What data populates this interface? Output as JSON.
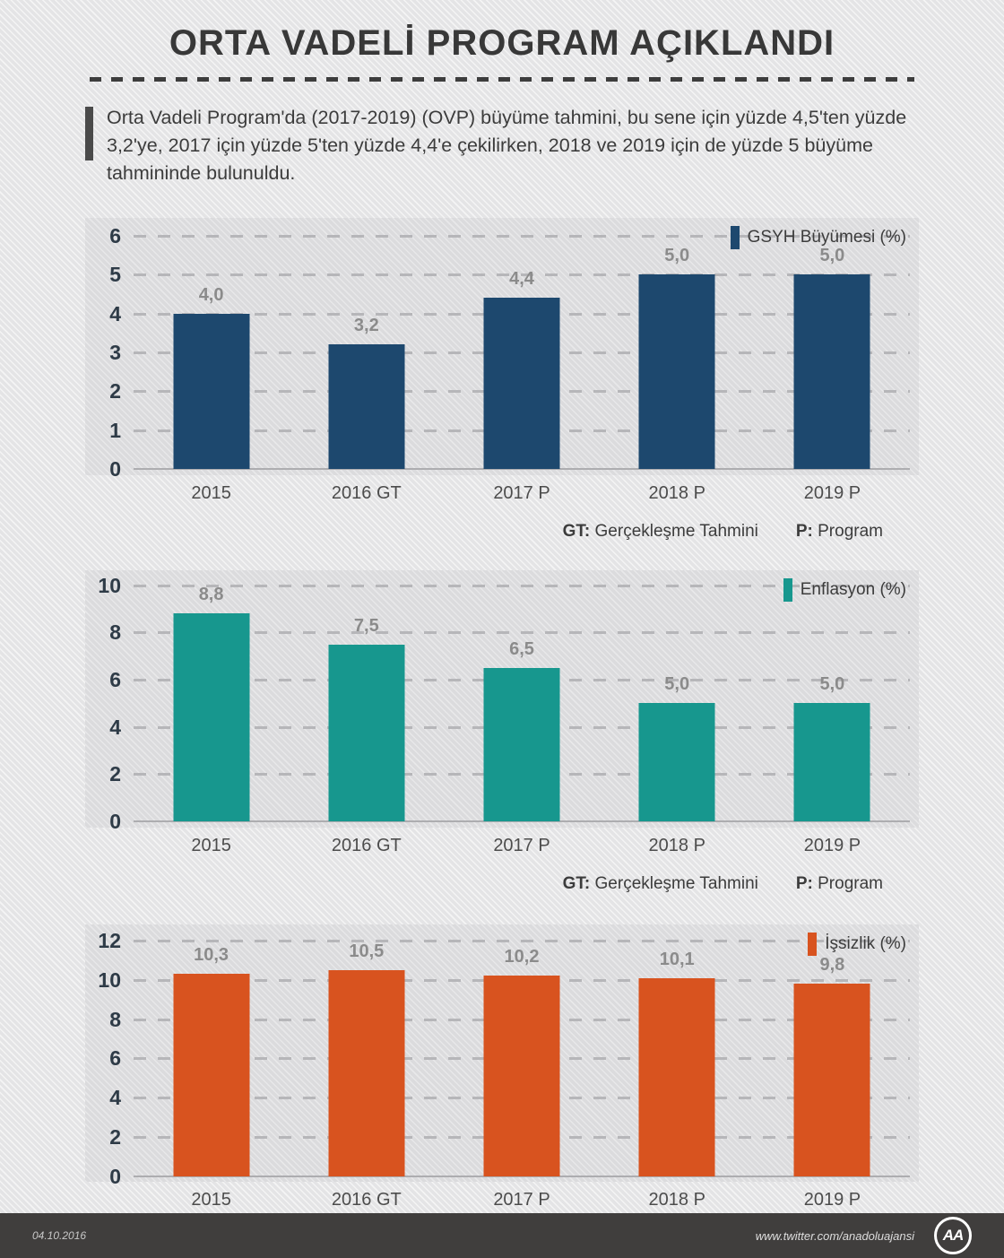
{
  "header": {
    "title": "ORTA VADELİ PROGRAM AÇIKLANDI"
  },
  "intro": {
    "text": "Orta Vadeli Program'da (2017-2019) (OVP) büyüme tahmini, bu sene için yüzde 4,5'ten yüzde 3,2'ye, 2017 için yüzde 5'ten yüzde 4,4'e çekilirken, 2018 ve 2019 için de yüzde 5 büyüme tahmininde bulunuldu."
  },
  "abbrev_note": {
    "gt_label": "GT:",
    "gt_text": " Gerçekleşme Tahmini",
    "p_label": "P:",
    "p_text": " Program"
  },
  "chart_data": [
    {
      "type": "bar",
      "legend": "GSYH Büyümesi (%)",
      "color": "#1d486e",
      "categories": [
        "2015",
        "2016 GT",
        "2017 P",
        "2018 P",
        "2019 P"
      ],
      "values": [
        4.0,
        3.2,
        4.4,
        5.0,
        5.0
      ],
      "value_labels": [
        "4,0",
        "3,2",
        "4,4",
        "5,0",
        "5,0"
      ],
      "ylim": [
        0,
        6
      ],
      "yticks": [
        6,
        5,
        4,
        3,
        2,
        1,
        0
      ],
      "grid": "dashed",
      "legend_position": "top-right"
    },
    {
      "type": "bar",
      "legend": "Enflasyon (%)",
      "color": "#17978e",
      "categories": [
        "2015",
        "2016 GT",
        "2017 P",
        "2018 P",
        "2019 P"
      ],
      "values": [
        8.8,
        7.5,
        6.5,
        5.0,
        5.0
      ],
      "value_labels": [
        "8,8",
        "7,5",
        "6,5",
        "5,0",
        "5,0"
      ],
      "ylim": [
        0,
        10
      ],
      "yticks": [
        10,
        8,
        6,
        4,
        2,
        0
      ],
      "grid": "dashed",
      "legend_position": "top-right"
    },
    {
      "type": "bar",
      "legend": "İşsizlik (%)",
      "color": "#d8531f",
      "categories": [
        "2015",
        "2016 GT",
        "2017 P",
        "2018 P",
        "2019 P"
      ],
      "values": [
        10.3,
        10.5,
        10.2,
        10.1,
        9.8
      ],
      "value_labels": [
        "10,3",
        "10,5",
        "10,2",
        "10,1",
        "9,8"
      ],
      "ylim": [
        0,
        12
      ],
      "yticks": [
        12,
        10,
        8,
        6,
        4,
        2,
        0
      ],
      "grid": "dashed",
      "legend_position": "top-right"
    }
  ],
  "footer": {
    "date": "04.10.2016",
    "url": "www.twitter.com/anadoluajansi",
    "logo_text": "AA"
  }
}
